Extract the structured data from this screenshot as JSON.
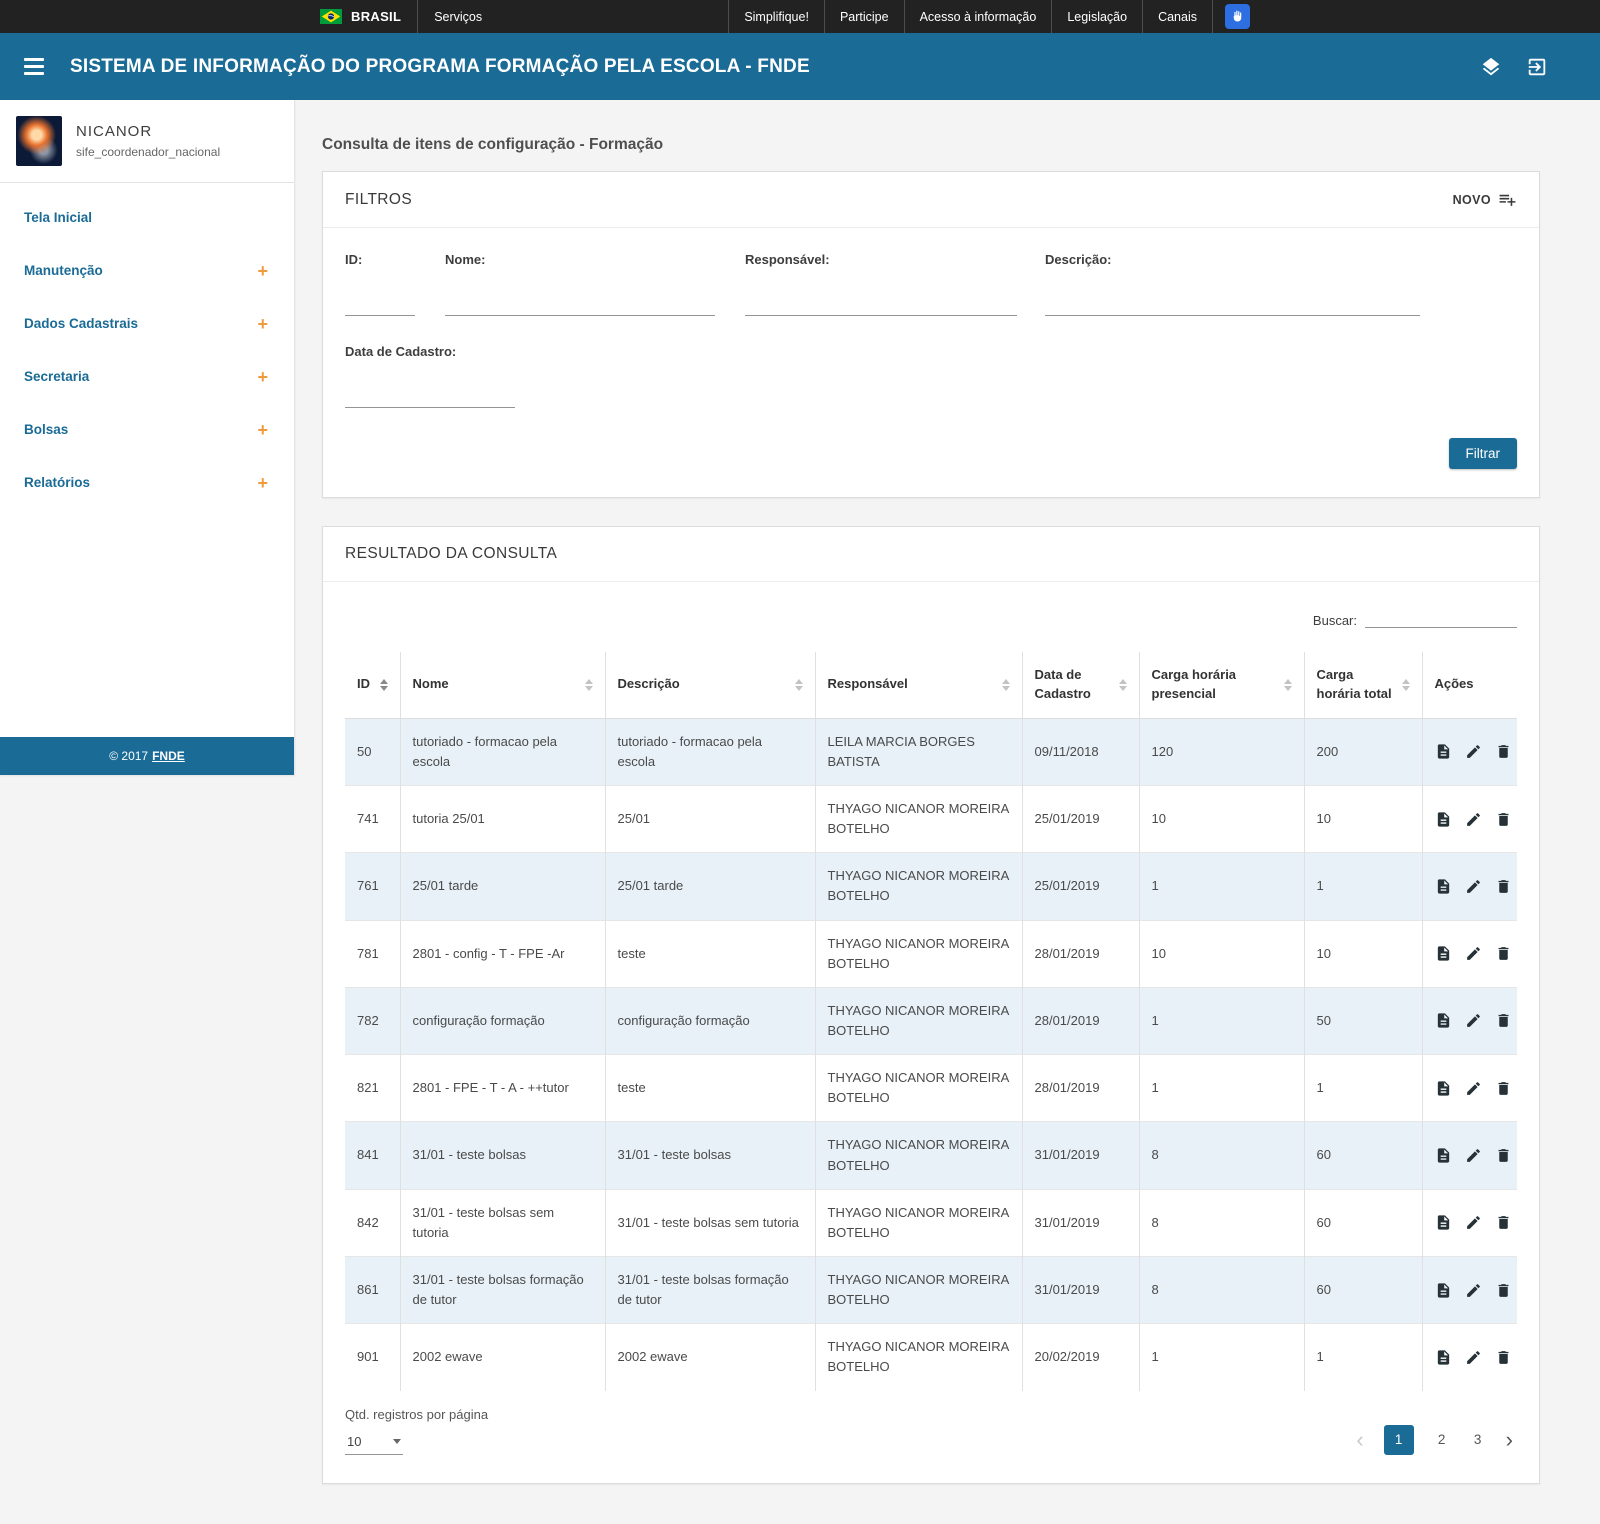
{
  "colors": {
    "header_blue": "#1A6B96",
    "accent_orange": "#F09A3E",
    "row_stripe": "#E8F1F8",
    "govbar_bg": "#222222",
    "accessibility_blue": "#2D6FE0"
  },
  "govbar": {
    "brand": "BRASIL",
    "services_label": "Serviços",
    "links": [
      "Simplifique!",
      "Participe",
      "Acesso à informação",
      "Legislação",
      "Canais"
    ]
  },
  "header": {
    "title": "SISTEMA DE INFORMAÇÃO DO PROGRAMA FORMAÇÃO PELA ESCOLA - FNDE"
  },
  "sidebar": {
    "user": {
      "name": "NICANOR",
      "role": "sife_coordenador_nacional"
    },
    "items": [
      {
        "label": "Tela Inicial",
        "expandable": false
      },
      {
        "label": "Manutenção",
        "expandable": true
      },
      {
        "label": "Dados Cadastrais",
        "expandable": true
      },
      {
        "label": "Secretaria",
        "expandable": true
      },
      {
        "label": "Bolsas",
        "expandable": true
      },
      {
        "label": "Relatórios",
        "expandable": true
      }
    ],
    "footer": {
      "copyright": "© 2017",
      "brand": "FNDE"
    }
  },
  "main": {
    "page_title": "Consulta de itens de configuração - Formação",
    "filters": {
      "title": "FILTROS",
      "novo_label": "NOVO",
      "fields": [
        {
          "label": "ID:",
          "value": ""
        },
        {
          "label": "Nome:",
          "value": ""
        },
        {
          "label": "Responsável:",
          "value": ""
        },
        {
          "label": "Descrição:",
          "value": ""
        },
        {
          "label": "Data de Cadastro:",
          "value": ""
        }
      ],
      "submit_label": "Filtrar"
    },
    "results": {
      "title": "RESULTADO DA CONSULTA",
      "search_label": "Buscar:",
      "search_value": "",
      "table": {
        "columns": [
          {
            "key": "id",
            "label": "ID",
            "sortable": true,
            "sorted": true
          },
          {
            "key": "nome",
            "label": "Nome",
            "sortable": true
          },
          {
            "key": "descricao",
            "label": "Descrição",
            "sortable": true
          },
          {
            "key": "responsavel",
            "label": "Responsável",
            "sortable": true
          },
          {
            "key": "data_cadastro",
            "label": "Data de Cadastro",
            "sortable": true
          },
          {
            "key": "carga_presencial",
            "label": "Carga horária presencial",
            "sortable": true
          },
          {
            "key": "carga_total",
            "label": "Carga horária total",
            "sortable": true
          },
          {
            "key": "acoes",
            "label": "Ações",
            "sortable": false
          }
        ],
        "rows": [
          {
            "id": "50",
            "nome": "tutoriado - formacao pela escola",
            "descricao": "tutoriado - formacao pela escola",
            "responsavel": "LEILA MARCIA BORGES BATISTA",
            "data_cadastro": "09/11/2018",
            "carga_presencial": "120",
            "carga_total": "200"
          },
          {
            "id": "741",
            "nome": "tutoria 25/01",
            "descricao": "25/01",
            "responsavel": "THYAGO NICANOR MOREIRA BOTELHO",
            "data_cadastro": "25/01/2019",
            "carga_presencial": "10",
            "carga_total": "10"
          },
          {
            "id": "761",
            "nome": "25/01 tarde",
            "descricao": "25/01 tarde",
            "responsavel": "THYAGO NICANOR MOREIRA BOTELHO",
            "data_cadastro": "25/01/2019",
            "carga_presencial": "1",
            "carga_total": "1"
          },
          {
            "id": "781",
            "nome": "2801 - config - T - FPE -Ar",
            "descricao": "teste",
            "responsavel": "THYAGO NICANOR MOREIRA BOTELHO",
            "data_cadastro": "28/01/2019",
            "carga_presencial": "10",
            "carga_total": "10"
          },
          {
            "id": "782",
            "nome": "configuração formação",
            "descricao": "configuração formação",
            "responsavel": "THYAGO NICANOR MOREIRA BOTELHO",
            "data_cadastro": "28/01/2019",
            "carga_presencial": "1",
            "carga_total": "50"
          },
          {
            "id": "821",
            "nome": "2801 - FPE - T - A - ++tutor",
            "descricao": "teste",
            "responsavel": "THYAGO NICANOR MOREIRA BOTELHO",
            "data_cadastro": "28/01/2019",
            "carga_presencial": "1",
            "carga_total": "1"
          },
          {
            "id": "841",
            "nome": "31/01 - teste bolsas",
            "descricao": "31/01 - teste bolsas",
            "responsavel": "THYAGO NICANOR MOREIRA BOTELHO",
            "data_cadastro": "31/01/2019",
            "carga_presencial": "8",
            "carga_total": "60"
          },
          {
            "id": "842",
            "nome": "31/01 - teste bolsas sem tutoria",
            "descricao": "31/01 - teste bolsas sem tutoria",
            "responsavel": "THYAGO NICANOR MOREIRA BOTELHO",
            "data_cadastro": "31/01/2019",
            "carga_presencial": "8",
            "carga_total": "60"
          },
          {
            "id": "861",
            "nome": "31/01 - teste bolsas formação de tutor",
            "descricao": "31/01 - teste bolsas formação de tutor",
            "responsavel": "THYAGO NICANOR MOREIRA BOTELHO",
            "data_cadastro": "31/01/2019",
            "carga_presencial": "8",
            "carga_total": "60"
          },
          {
            "id": "901",
            "nome": "2002 ewave",
            "descricao": "2002 ewave",
            "responsavel": "THYAGO NICANOR MOREIRA BOTELHO",
            "data_cadastro": "20/02/2019",
            "carga_presencial": "1",
            "carga_total": "1"
          }
        ]
      },
      "row_actions": [
        "report-icon",
        "edit-icon",
        "delete-icon"
      ],
      "per_page_label": "Qtd. registros por página",
      "per_page_value": "10",
      "pagination": {
        "prev": "‹",
        "next": "›",
        "pages": [
          "1",
          "2",
          "3"
        ],
        "active": "1"
      }
    }
  }
}
